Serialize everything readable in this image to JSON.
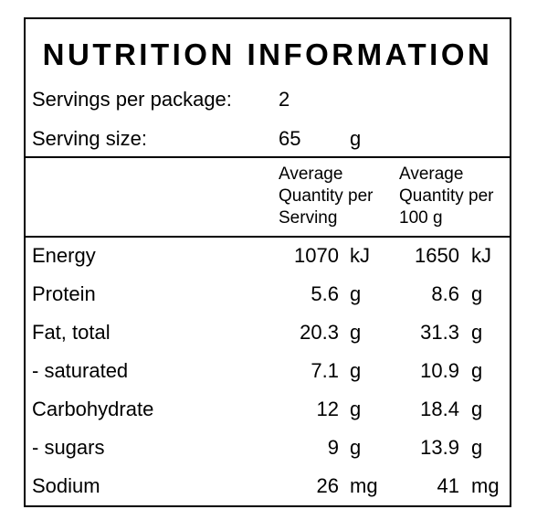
{
  "title": "NUTRITION INFORMATION",
  "servings": {
    "label": "Servings per package:",
    "value": "2"
  },
  "serving_size": {
    "label": "Serving size:",
    "value": "65",
    "unit": "g"
  },
  "columns": {
    "per_serving": [
      "Average",
      "Quantity per",
      "Serving"
    ],
    "per_100g": [
      "Average",
      "Quantity per",
      "100 g"
    ]
  },
  "rows": [
    {
      "name": "Energy",
      "serving": "1070",
      "serving_unit": "kJ",
      "per100": "1650",
      "per100_unit": "kJ"
    },
    {
      "name": "Protein",
      "serving": "5.6",
      "serving_unit": "g",
      "per100": "8.6",
      "per100_unit": "g"
    },
    {
      "name": "Fat, total",
      "serving": "20.3",
      "serving_unit": "g",
      "per100": "31.3",
      "per100_unit": "g"
    },
    {
      "name": "- saturated",
      "serving": "7.1",
      "serving_unit": "g",
      "per100": "10.9",
      "per100_unit": "g"
    },
    {
      "name": "Carbohydrate",
      "serving": "12",
      "serving_unit": "g",
      "per100": "18.4",
      "per100_unit": "g"
    },
    {
      "name": "- sugars",
      "serving": "9",
      "serving_unit": "g",
      "per100": "13.9",
      "per100_unit": "g"
    },
    {
      "name": "Sodium",
      "serving": "26",
      "serving_unit": "mg",
      "per100": "41",
      "per100_unit": "mg"
    }
  ]
}
